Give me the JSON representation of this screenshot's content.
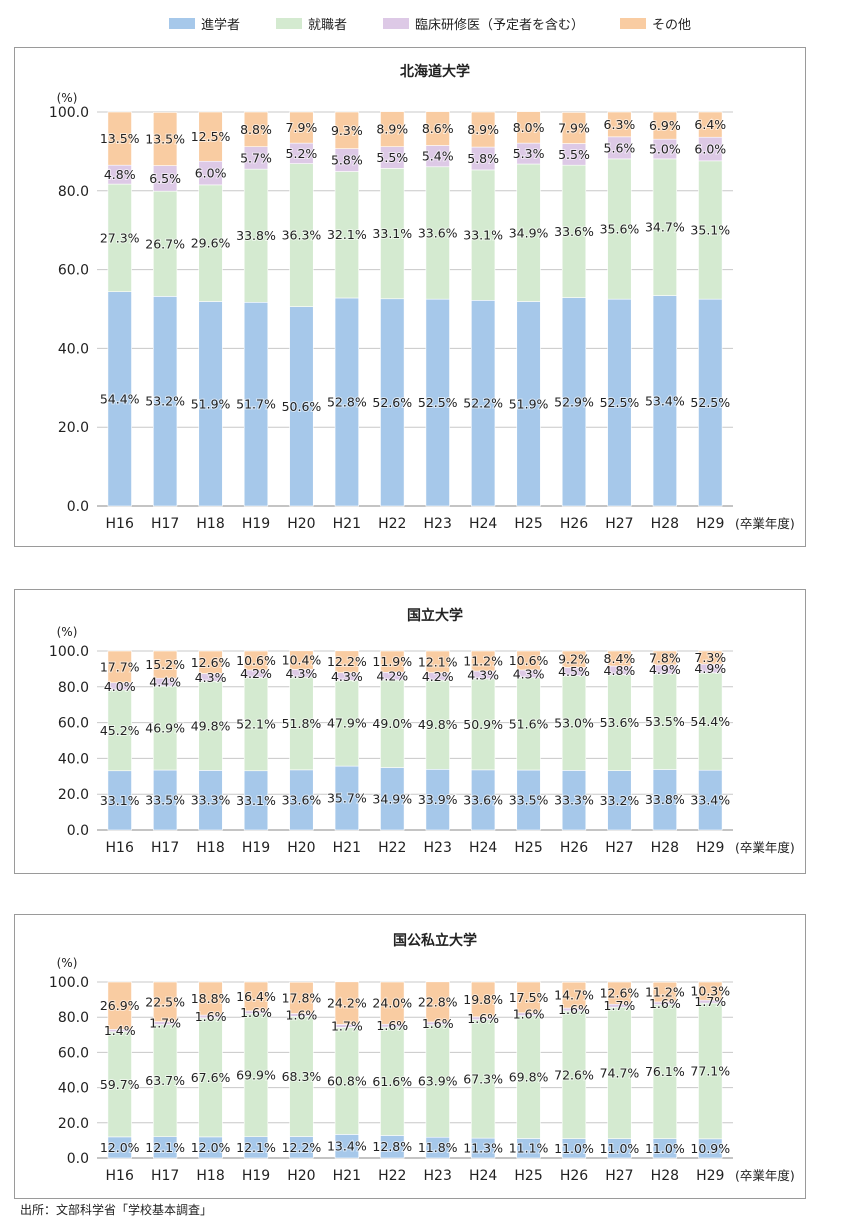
{
  "legend": {
    "series": [
      {
        "name": "進学者",
        "color": "#a6c8ea"
      },
      {
        "name": "就職者",
        "color": "#d4ead0"
      },
      {
        "name": "臨床研修医（予定者を含む）",
        "color": "#ddc9e6"
      },
      {
        "name": "その他",
        "color": "#f9ccA2"
      }
    ]
  },
  "source": "出所：文部科学省「学校基本調査」",
  "chart_data": [
    {
      "type": "bar",
      "stacked": true,
      "title": "北海道大学",
      "ylabel": "(%)",
      "xlabel": "(卒業年度)",
      "ylim": [
        0,
        100
      ],
      "yticks": [
        "0.0",
        "20.0",
        "40.0",
        "60.0",
        "80.0",
        "100.0"
      ],
      "grid": true,
      "categories": [
        "H16",
        "H17",
        "H18",
        "H19",
        "H20",
        "H21",
        "H22",
        "H23",
        "H24",
        "H25",
        "H26",
        "H27",
        "H28",
        "H29"
      ],
      "series": [
        {
          "name": "進学者",
          "values": [
            54.4,
            53.2,
            51.9,
            51.7,
            50.6,
            52.8,
            52.6,
            52.5,
            52.2,
            51.9,
            52.9,
            52.5,
            53.4,
            52.5
          ],
          "labels": [
            "54.4%",
            "53.2%",
            "51.9%",
            "51.7%",
            "50.6%",
            "52.8%",
            "52.6%",
            "52.5%",
            "52.2%",
            "51.9%",
            "52.9%",
            "52.5%",
            "53.4%",
            "52.5%"
          ]
        },
        {
          "name": "就職者",
          "values": [
            27.3,
            26.7,
            29.6,
            33.8,
            36.3,
            32.1,
            33.1,
            33.6,
            33.1,
            34.9,
            33.6,
            35.6,
            34.7,
            35.1
          ],
          "labels": [
            "27.3%",
            "26.7%",
            "29.6%",
            "33.8%",
            "36.3%",
            "32.1%",
            "33.1%",
            "33.6%",
            "33.1%",
            "34.9%",
            "33.6%",
            "35.6%",
            "34.7%",
            "35.1%"
          ]
        },
        {
          "name": "臨床研修医（予定者を含む）",
          "values": [
            4.8,
            6.5,
            6.0,
            5.7,
            5.2,
            5.8,
            5.5,
            5.4,
            5.8,
            5.3,
            5.5,
            5.6,
            5.0,
            6.0
          ],
          "labels": [
            "4.8%",
            "6.5%",
            "6.0%",
            "5.7%",
            "5.2%",
            "5.8%",
            "5.5%",
            "5.4%",
            "5.8%",
            "5.3%",
            "5.5%",
            "5.6%",
            "5.0%",
            "6.0%"
          ]
        },
        {
          "name": "その他",
          "values": [
            13.5,
            13.5,
            12.5,
            8.8,
            7.9,
            9.3,
            8.9,
            8.6,
            8.9,
            8.0,
            7.9,
            6.3,
            6.9,
            6.4
          ],
          "labels": [
            "13.5%",
            "13.5%",
            "12.5%",
            "8.8%",
            "7.9%",
            "9.3%",
            "8.9%",
            "8.6%",
            "8.9%",
            "8.0%",
            "7.9%",
            "6.3%",
            "6.9%",
            "6.4%"
          ]
        }
      ]
    },
    {
      "type": "bar",
      "stacked": true,
      "title": "国立大学",
      "ylabel": "(%)",
      "xlabel": "(卒業年度)",
      "ylim": [
        0,
        100
      ],
      "yticks": [
        "0.0",
        "20.0",
        "40.0",
        "60.0",
        "80.0",
        "100.0"
      ],
      "grid": true,
      "categories": [
        "H16",
        "H17",
        "H18",
        "H19",
        "H20",
        "H21",
        "H22",
        "H23",
        "H24",
        "H25",
        "H26",
        "H27",
        "H28",
        "H29"
      ],
      "series": [
        {
          "name": "進学者",
          "values": [
            33.1,
            33.5,
            33.3,
            33.1,
            33.6,
            35.7,
            34.9,
            33.9,
            33.6,
            33.5,
            33.3,
            33.2,
            33.8,
            33.4
          ],
          "labels": [
            "33.1%",
            "33.5%",
            "33.3%",
            "33.1%",
            "33.6%",
            "35.7%",
            "34.9%",
            "33.9%",
            "33.6%",
            "33.5%",
            "33.3%",
            "33.2%",
            "33.8%",
            "33.4%"
          ]
        },
        {
          "name": "就職者",
          "values": [
            45.2,
            46.9,
            49.8,
            52.1,
            51.8,
            47.9,
            49.0,
            49.8,
            50.9,
            51.6,
            53.0,
            53.6,
            53.5,
            54.4
          ],
          "labels": [
            "45.2%",
            "46.9%",
            "49.8%",
            "52.1%",
            "51.8%",
            "47.9%",
            "49.0%",
            "49.8%",
            "50.9%",
            "51.6%",
            "53.0%",
            "53.6%",
            "53.5%",
            "54.4%"
          ]
        },
        {
          "name": "臨床研修医（予定者を含む）",
          "values": [
            4.0,
            4.4,
            4.3,
            4.2,
            4.3,
            4.3,
            4.2,
            4.2,
            4.3,
            4.3,
            4.5,
            4.8,
            4.9,
            4.9
          ],
          "labels": [
            "4.0%",
            "4.4%",
            "4.3%",
            "4.2%",
            "4.3%",
            "4.3%",
            "4.2%",
            "4.2%",
            "4.3%",
            "4.3%",
            "4.5%",
            "4.8%",
            "4.9%",
            "4.9%"
          ]
        },
        {
          "name": "その他",
          "values": [
            17.7,
            15.2,
            12.6,
            10.6,
            10.4,
            12.2,
            11.9,
            12.1,
            11.2,
            10.6,
            9.2,
            8.4,
            7.8,
            7.3
          ],
          "labels": [
            "17.7%",
            "15.2%",
            "12.6%",
            "10.6%",
            "10.4%",
            "12.2%",
            "11.9%",
            "12.1%",
            "11.2%",
            "10.6%",
            "9.2%",
            "8.4%",
            "7.8%",
            "7.3%"
          ]
        }
      ]
    },
    {
      "type": "bar",
      "stacked": true,
      "title": "国公私立大学",
      "ylabel": "(%)",
      "xlabel": "(卒業年度)",
      "ylim": [
        0,
        100
      ],
      "yticks": [
        "0.0",
        "20.0",
        "40.0",
        "60.0",
        "80.0",
        "100.0"
      ],
      "grid": true,
      "categories": [
        "H16",
        "H17",
        "H18",
        "H19",
        "H20",
        "H21",
        "H22",
        "H23",
        "H24",
        "H25",
        "H26",
        "H27",
        "H28",
        "H29"
      ],
      "series": [
        {
          "name": "進学者",
          "values": [
            12.0,
            12.1,
            12.0,
            12.1,
            12.2,
            13.4,
            12.8,
            11.8,
            11.3,
            11.1,
            11.0,
            11.0,
            11.0,
            10.9
          ],
          "labels": [
            "12.0%",
            "12.1%",
            "12.0%",
            "12.1%",
            "12.2%",
            "13.4%",
            "12.8%",
            "11.8%",
            "11.3%",
            "11.1%",
            "11.0%",
            "11.0%",
            "11.0%",
            "10.9%"
          ]
        },
        {
          "name": "就職者",
          "values": [
            59.7,
            63.7,
            67.6,
            69.9,
            68.3,
            60.8,
            61.6,
            63.9,
            67.3,
            69.8,
            72.6,
            74.7,
            76.1,
            77.1
          ],
          "labels": [
            "59.7%",
            "63.7%",
            "67.6%",
            "69.9%",
            "68.3%",
            "60.8%",
            "61.6%",
            "63.9%",
            "67.3%",
            "69.8%",
            "72.6%",
            "74.7%",
            "76.1%",
            "77.1%"
          ]
        },
        {
          "name": "臨床研修医（予定者を含む）",
          "values": [
            1.4,
            1.7,
            1.6,
            1.6,
            1.6,
            1.7,
            1.6,
            1.6,
            1.6,
            1.6,
            1.6,
            1.7,
            1.6,
            1.7
          ],
          "labels": [
            "1.4%",
            "1.7%",
            "1.6%",
            "1.6%",
            "1.6%",
            "1.7%",
            "1.6%",
            "1.6%",
            "1.6%",
            "1.6%",
            "1.6%",
            "1.7%",
            "1.6%",
            "1.7%"
          ]
        },
        {
          "name": "その他",
          "values": [
            26.9,
            22.5,
            18.8,
            16.4,
            17.8,
            24.2,
            24.0,
            22.8,
            19.8,
            17.5,
            14.7,
            12.6,
            11.2,
            10.3
          ],
          "labels": [
            "26.9%",
            "22.5%",
            "18.8%",
            "16.4%",
            "17.8%",
            "24.2%",
            "24.0%",
            "22.8%",
            "19.8%",
            "17.5%",
            "14.7%",
            "12.6%",
            "11.2%",
            "10.3%"
          ]
        }
      ]
    }
  ]
}
